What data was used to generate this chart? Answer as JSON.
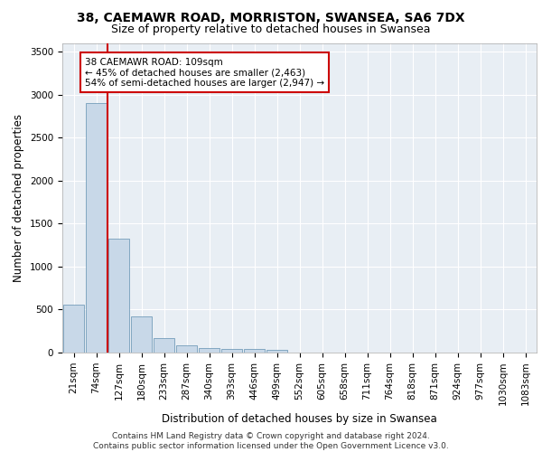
{
  "title_line1": "38, CAEMAWR ROAD, MORRISTON, SWANSEA, SA6 7DX",
  "title_line2": "Size of property relative to detached houses in Swansea",
  "xlabel": "Distribution of detached houses by size in Swansea",
  "ylabel": "Number of detached properties",
  "footnote": "Contains HM Land Registry data © Crown copyright and database right 2024.\nContains public sector information licensed under the Open Government Licence v3.0.",
  "bin_labels": [
    "21sqm",
    "74sqm",
    "127sqm",
    "180sqm",
    "233sqm",
    "287sqm",
    "340sqm",
    "393sqm",
    "446sqm",
    "499sqm",
    "552sqm",
    "605sqm",
    "658sqm",
    "711sqm",
    "764sqm",
    "818sqm",
    "871sqm",
    "924sqm",
    "977sqm",
    "1030sqm",
    "1083sqm"
  ],
  "bar_values": [
    560,
    2900,
    1320,
    420,
    165,
    80,
    55,
    45,
    40,
    35,
    0,
    0,
    0,
    0,
    0,
    0,
    0,
    0,
    0,
    0,
    0
  ],
  "bar_color": "#c8d8e8",
  "bar_edge_color": "#6090b0",
  "bar_edge_width": 0.5,
  "red_line_color": "#cc0000",
  "annotation_text": "38 CAEMAWR ROAD: 109sqm\n← 45% of detached houses are smaller (2,463)\n54% of semi-detached houses are larger (2,947) →",
  "annotation_box_color": "#ffffff",
  "annotation_box_edge": "#cc0000",
  "ylim": [
    0,
    3600
  ],
  "yticks": [
    0,
    500,
    1000,
    1500,
    2000,
    2500,
    3000,
    3500
  ],
  "plot_background": "#e8eef4",
  "grid_color": "#ffffff",
  "title_fontsize": 10,
  "subtitle_fontsize": 9,
  "axis_label_fontsize": 8.5,
  "tick_fontsize": 7.5,
  "footnote_fontsize": 6.5
}
